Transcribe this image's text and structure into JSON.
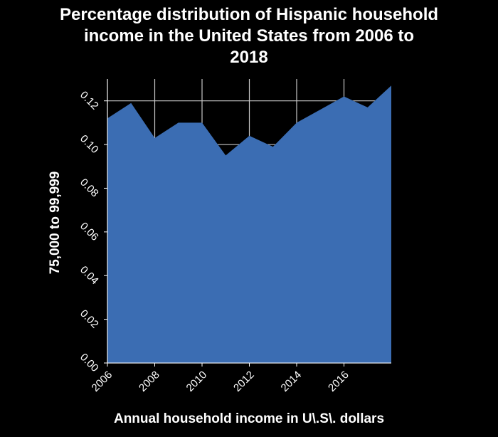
{
  "chart_data": {
    "type": "area",
    "title_lines": [
      "Percentage distribution of Hispanic household",
      "income in the United States from 2006 to",
      "2018"
    ],
    "xlabel": "Annual household income in U\\.S\\. dollars",
    "ylabel": "75,000 to 99,999",
    "x": [
      2006,
      2007,
      2008,
      2009,
      2010,
      2011,
      2012,
      2013,
      2014,
      2015,
      2016,
      2017,
      2018
    ],
    "y": [
      0.112,
      0.119,
      0.103,
      0.11,
      0.11,
      0.095,
      0.104,
      0.099,
      0.11,
      0.116,
      0.122,
      0.117,
      0.127
    ],
    "xticks": [
      "2006",
      "2008",
      "2010",
      "2012",
      "2014",
      "2016"
    ],
    "yticks": [
      "0.00",
      "0.02",
      "0.04",
      "0.06",
      "0.08",
      "0.10",
      "0.12"
    ],
    "xlim": [
      2006,
      2018
    ],
    "ylim": [
      0,
      0.13
    ],
    "grid": true,
    "colors": {
      "fill": "#3b6db3",
      "background": "#000000",
      "grid": "#c8c8c8",
      "text": "#ffffff"
    }
  }
}
